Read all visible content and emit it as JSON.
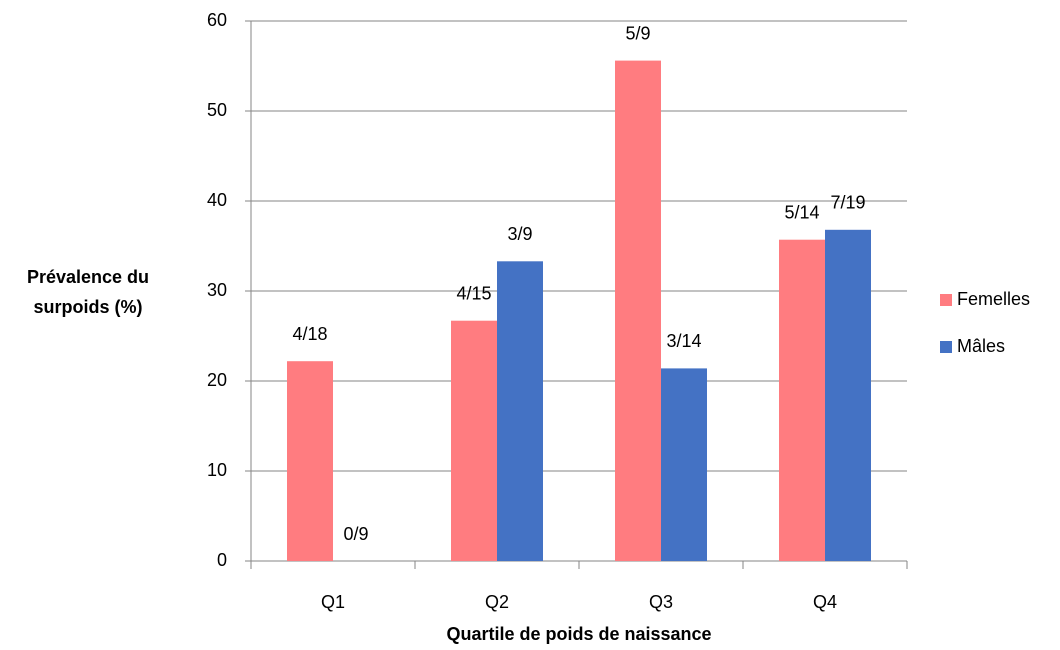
{
  "chart_data": {
    "type": "bar",
    "xlabel": "Quartile de poids de naissance",
    "ylabel": "Prévalence du surpoids (%)",
    "categories": [
      "Q1",
      "Q2",
      "Q3",
      "Q4"
    ],
    "series": [
      {
        "name": "Femelles",
        "color": "#ff7c80",
        "values": [
          22.2,
          26.7,
          55.6,
          35.7
        ],
        "value_labels": [
          "4/18",
          "4/15",
          "5/9",
          "5/14"
        ]
      },
      {
        "name": "Mâles",
        "color": "#4472c4",
        "values": [
          0,
          33.3,
          21.4,
          36.8
        ],
        "value_labels": [
          "0/9",
          "3/9",
          "3/14",
          "7/19"
        ]
      }
    ],
    "ylim": [
      0,
      60
    ],
    "yticks": [
      0,
      10,
      20,
      30,
      40,
      50,
      60
    ],
    "grid": true,
    "legend": "right"
  }
}
